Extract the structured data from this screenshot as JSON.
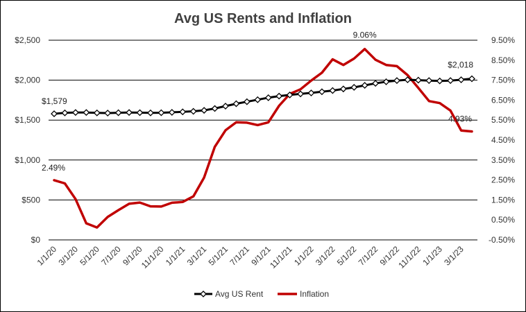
{
  "chart_data": {
    "type": "line",
    "title": "Avg US Rents and Inflation",
    "x": [
      "1/1/20",
      "2/1/20",
      "3/1/20",
      "4/1/20",
      "5/1/20",
      "6/1/20",
      "7/1/20",
      "8/1/20",
      "9/1/20",
      "10/1/20",
      "11/1/20",
      "12/1/20",
      "1/1/21",
      "2/1/21",
      "3/1/21",
      "4/1/21",
      "5/1/21",
      "6/1/21",
      "7/1/21",
      "8/1/21",
      "9/1/21",
      "10/1/21",
      "11/1/21",
      "12/1/21",
      "1/1/22",
      "2/1/22",
      "3/1/22",
      "4/1/22",
      "5/1/22",
      "6/1/22",
      "7/1/22",
      "8/1/22",
      "9/1/22",
      "10/1/22",
      "11/1/22",
      "12/1/22",
      "1/1/23",
      "2/1/23",
      "3/1/23",
      "4/1/23"
    ],
    "x_tick_labels": [
      "1/1/20",
      "3/1/20",
      "5/1/20",
      "7/1/20",
      "9/1/20",
      "11/1/20",
      "1/1/21",
      "3/1/21",
      "5/1/21",
      "7/1/21",
      "9/1/21",
      "11/1/21",
      "1/1/22",
      "3/1/22",
      "5/1/22",
      "7/1/22",
      "9/1/22",
      "11/1/22",
      "1/1/23",
      "3/1/23"
    ],
    "y_left": {
      "ticks": [
        "$0",
        "$500",
        "$1,000",
        "$1,500",
        "$2,000",
        "$2,500"
      ],
      "lim": [
        0,
        2500
      ]
    },
    "y_right": {
      "ticks": [
        "-0.50%",
        "0.50%",
        "1.50%",
        "2.50%",
        "3.50%",
        "4.50%",
        "5.50%",
        "6.50%",
        "7.50%",
        "8.50%",
        "9.50%"
      ],
      "lim": [
        -0.5,
        9.5
      ]
    },
    "grid": "horizontal",
    "legend_position": "bottom",
    "series": [
      {
        "name": "Avg US Rent",
        "axis": "left",
        "color": "#000000",
        "marker": "diamond",
        "values": [
          1579,
          1590,
          1595,
          1595,
          1590,
          1588,
          1592,
          1595,
          1593,
          1590,
          1592,
          1597,
          1603,
          1610,
          1622,
          1645,
          1675,
          1705,
          1730,
          1755,
          1780,
          1800,
          1815,
          1828,
          1840,
          1855,
          1870,
          1890,
          1910,
          1935,
          1960,
          1980,
          1995,
          2005,
          2000,
          1995,
          1990,
          1995,
          2005,
          2018
        ]
      },
      {
        "name": "Inflation",
        "axis": "right",
        "color": "#c00000",
        "values": [
          2.49,
          2.33,
          1.54,
          0.33,
          0.12,
          0.65,
          0.99,
          1.31,
          1.37,
          1.18,
          1.17,
          1.36,
          1.4,
          1.68,
          2.62,
          4.16,
          4.99,
          5.39,
          5.37,
          5.25,
          5.39,
          6.22,
          6.81,
          7.04,
          7.48,
          7.87,
          8.54,
          8.26,
          8.58,
          9.06,
          8.52,
          8.26,
          8.2,
          7.75,
          7.11,
          6.45,
          6.35,
          5.98,
          4.98,
          4.93
        ]
      }
    ],
    "data_labels": [
      {
        "series": "Avg US Rent",
        "index": 0,
        "text": "$1,579"
      },
      {
        "series": "Avg US Rent",
        "index": 39,
        "text": "$2,018"
      },
      {
        "series": "Inflation",
        "index": 0,
        "text": "2.49%"
      },
      {
        "series": "Inflation",
        "index": 29,
        "text": "9.06%"
      },
      {
        "series": "Inflation",
        "index": 39,
        "text": "4.93%"
      }
    ]
  }
}
